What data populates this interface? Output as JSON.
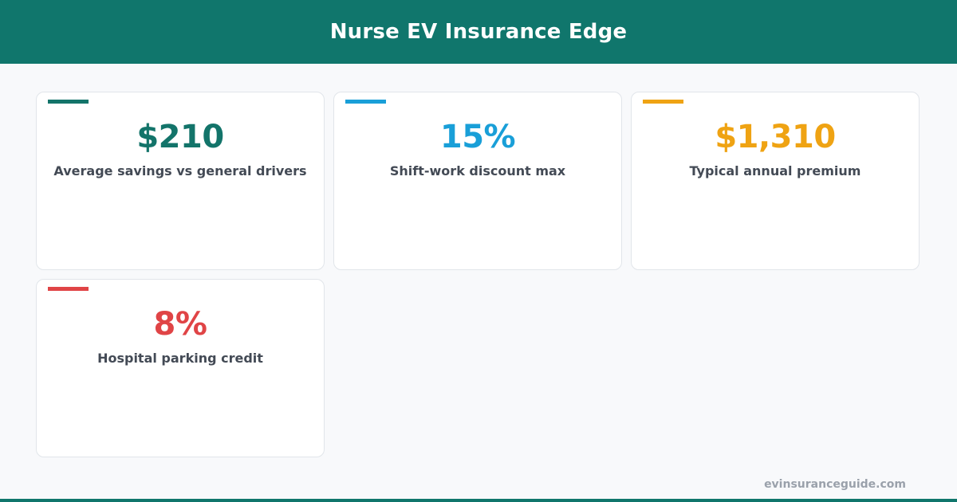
{
  "header": {
    "title": "Nurse EV Insurance Edge"
  },
  "stats": [
    {
      "value": "$210",
      "label": "Average savings vs general drivers",
      "color": "#13746a"
    },
    {
      "value": "15%",
      "label": "Shift-work discount max",
      "color": "#199fd8"
    },
    {
      "value": "$1,310",
      "label": "Typical annual premium",
      "color": "#efa313"
    },
    {
      "value": "8%",
      "label": "Hospital parking credit",
      "color": "#e04446"
    }
  ],
  "footer": {
    "domain": "evinsuranceguide.com"
  }
}
